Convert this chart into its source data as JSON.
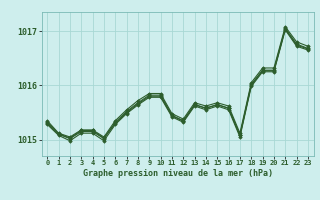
{
  "title": "Graphe pression niveau de la mer (hPa)",
  "background_color": "#ceeeed",
  "grid_color": "#a8d8d4",
  "line_color": "#2d5e2d",
  "x_labels": [
    "0",
    "1",
    "2",
    "3",
    "4",
    "5",
    "6",
    "7",
    "8",
    "9",
    "10",
    "11",
    "12",
    "13",
    "14",
    "15",
    "16",
    "17",
    "18",
    "19",
    "20",
    "21",
    "22",
    "23"
  ],
  "ylim": [
    1014.7,
    1017.35
  ],
  "yticks": [
    1015,
    1016,
    1017
  ],
  "series": [
    [
      1015.35,
      1015.12,
      1015.05,
      1015.18,
      1015.18,
      1015.05,
      1015.35,
      1015.55,
      1015.72,
      1015.85,
      1015.85,
      1015.48,
      1015.38,
      1015.68,
      1015.62,
      1015.68,
      1015.62,
      1015.12,
      1016.05,
      1016.32,
      1016.32,
      1017.08,
      1016.8,
      1016.72
    ],
    [
      1015.32,
      1015.1,
      1015.02,
      1015.15,
      1015.15,
      1015.02,
      1015.32,
      1015.52,
      1015.68,
      1015.82,
      1015.82,
      1015.45,
      1015.35,
      1015.65,
      1015.58,
      1015.65,
      1015.58,
      1015.08,
      1016.02,
      1016.28,
      1016.28,
      1017.05,
      1016.76,
      1016.68
    ],
    [
      1015.28,
      1015.08,
      1014.98,
      1015.12,
      1015.12,
      1014.98,
      1015.28,
      1015.48,
      1015.64,
      1015.78,
      1015.78,
      1015.42,
      1015.32,
      1015.62,
      1015.55,
      1015.62,
      1015.55,
      1015.05,
      1015.98,
      1016.25,
      1016.25,
      1017.02,
      1016.72,
      1016.65
    ],
    [
      1015.3,
      1015.11,
      1015.03,
      1015.17,
      1015.17,
      1015.03,
      1015.3,
      1015.5,
      1015.66,
      1015.8,
      1015.8,
      1015.44,
      1015.34,
      1015.64,
      1015.58,
      1015.64,
      1015.58,
      1015.08,
      1016.0,
      1016.27,
      1016.27,
      1017.04,
      1016.74,
      1016.67
    ]
  ]
}
